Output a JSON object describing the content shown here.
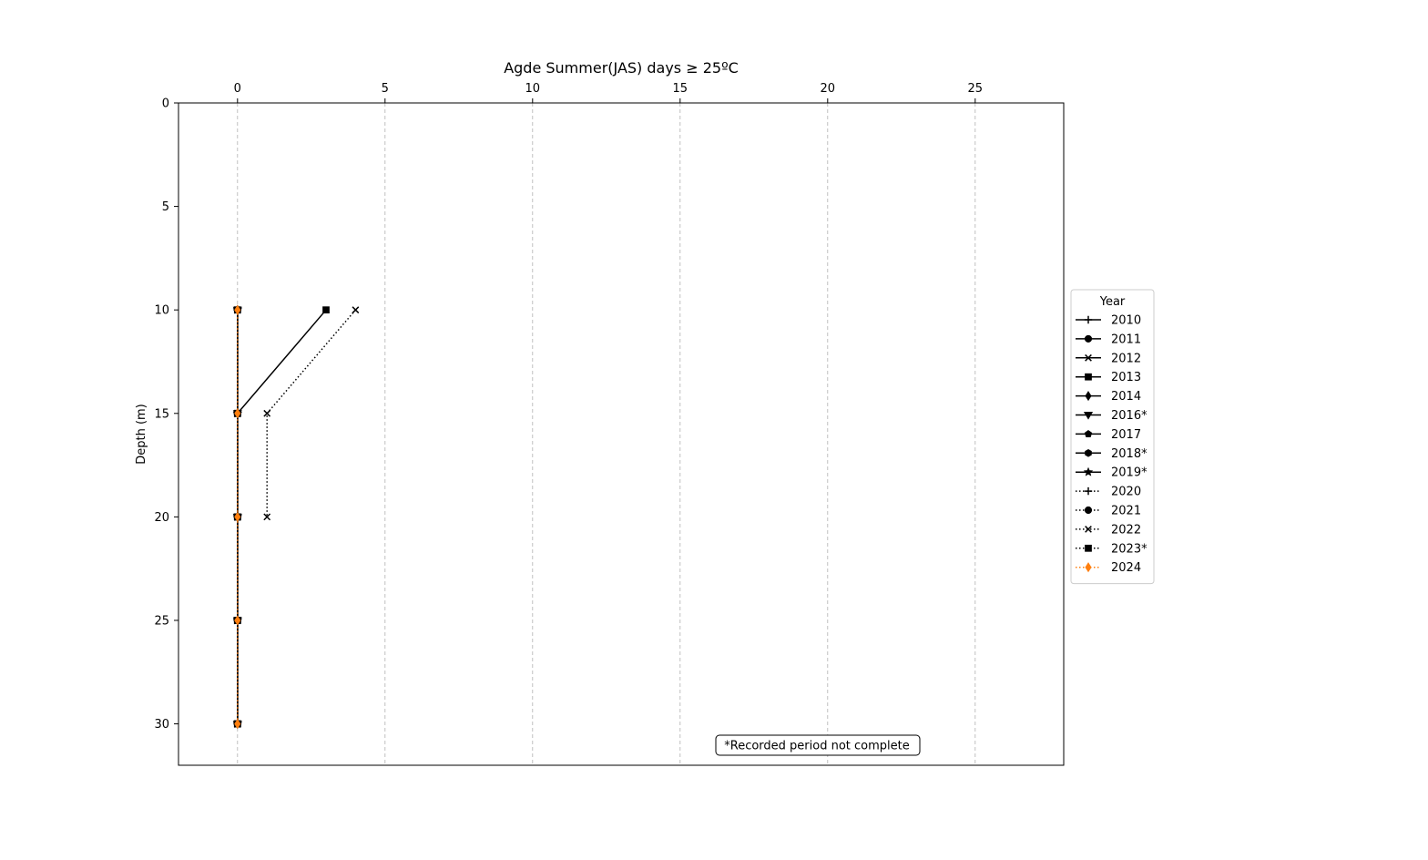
{
  "chart_data": {
    "type": "line",
    "title": "Agde Summer(JAS) days ≥ 25ºC",
    "xlabel": "",
    "ylabel": "Depth (m)",
    "xlim": [
      -2,
      28
    ],
    "ylim": [
      32,
      0
    ],
    "y_inverted": true,
    "x_ticks": [
      0,
      5,
      10,
      15,
      20,
      25
    ],
    "y_ticks": [
      0,
      5,
      10,
      15,
      20,
      25,
      30
    ],
    "x_axis_position": "top",
    "grid": "vertical dashed",
    "depths": [
      10,
      15,
      20,
      25,
      30
    ],
    "legend": {
      "title": "Year",
      "placement": "outside right"
    },
    "series": [
      {
        "name": "2010",
        "values": [
          0,
          0,
          0,
          0,
          0
        ],
        "marker": "plus",
        "line": "solid",
        "color": "#000000"
      },
      {
        "name": "2011",
        "values": [
          0,
          0,
          0,
          0,
          0
        ],
        "marker": "circle",
        "line": "solid",
        "color": "#000000"
      },
      {
        "name": "2012",
        "values": [
          0,
          0,
          0,
          0,
          0
        ],
        "marker": "x",
        "line": "solid",
        "color": "#000000"
      },
      {
        "name": "2013",
        "values": [
          3,
          0,
          0,
          0,
          0
        ],
        "marker": "square",
        "line": "solid",
        "color": "#000000"
      },
      {
        "name": "2014",
        "values": [
          0,
          0,
          0,
          0,
          0
        ],
        "marker": "diamond",
        "line": "solid",
        "color": "#000000"
      },
      {
        "name": "2016*",
        "values": [
          0,
          0,
          0,
          0,
          0
        ],
        "marker": "triangle-down",
        "line": "solid",
        "color": "#000000"
      },
      {
        "name": "2017",
        "values": [
          0,
          0,
          0,
          0,
          0
        ],
        "marker": "pentagon",
        "line": "solid",
        "color": "#000000"
      },
      {
        "name": "2018*",
        "values": [
          0,
          0,
          0,
          0,
          0
        ],
        "marker": "hexagon",
        "line": "solid",
        "color": "#000000"
      },
      {
        "name": "2019*",
        "values": [
          0,
          0,
          0,
          0,
          0
        ],
        "marker": "star",
        "line": "solid",
        "color": "#000000"
      },
      {
        "name": "2020",
        "values": [
          0,
          0,
          0,
          0,
          0
        ],
        "marker": "plus",
        "line": "dotted",
        "color": "#000000"
      },
      {
        "name": "2021",
        "values": [
          0,
          0,
          0,
          0,
          0
        ],
        "marker": "circle",
        "line": "dotted",
        "color": "#000000"
      },
      {
        "name": "2022",
        "values": [
          4,
          1,
          1,
          null,
          null
        ],
        "marker": "x",
        "line": "dotted",
        "color": "#000000"
      },
      {
        "name": "2023*",
        "values": [
          0,
          0,
          0,
          0,
          0
        ],
        "marker": "square",
        "line": "dotted",
        "color": "#000000"
      },
      {
        "name": "2024",
        "values": [
          0,
          0,
          0,
          0,
          0
        ],
        "marker": "diamond",
        "line": "dotted",
        "color": "#ff7f0e"
      }
    ],
    "annotation": "*Recorded period not complete"
  }
}
